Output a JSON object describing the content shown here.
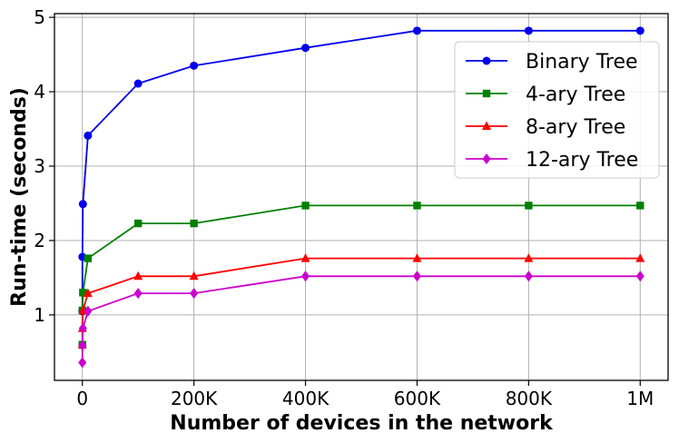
{
  "chart_data": {
    "type": "line",
    "title": "",
    "xlabel": "Number of devices in the network",
    "ylabel": "Run-time (seconds)",
    "xlim": [
      -50000,
      1050000
    ],
    "ylim": [
      0.12,
      5.05
    ],
    "x_ticks": [
      {
        "value": 0,
        "label": "0"
      },
      {
        "value": 200000,
        "label": "200K"
      },
      {
        "value": 400000,
        "label": "400K"
      },
      {
        "value": 600000,
        "label": "600K"
      },
      {
        "value": 800000,
        "label": "800K"
      },
      {
        "value": 1000000,
        "label": "1M"
      }
    ],
    "y_ticks": [
      {
        "value": 1,
        "label": "1"
      },
      {
        "value": 2,
        "label": "2"
      },
      {
        "value": 3,
        "label": "3"
      },
      {
        "value": 4,
        "label": "4"
      },
      {
        "value": 5,
        "label": "5"
      }
    ],
    "grid": true,
    "legend_position": "top-right",
    "x": [
      10,
      100,
      1000,
      10000,
      100000,
      200000,
      400000,
      600000,
      800000,
      1000000
    ],
    "series": [
      {
        "name": "Binary Tree",
        "color": "#0000ee",
        "marker": "circle",
        "values": [
          1.05,
          1.78,
          2.49,
          3.41,
          4.11,
          4.35,
          4.59,
          4.82,
          4.82,
          4.82
        ]
      },
      {
        "name": "4-ary Tree",
        "color": "#008000",
        "marker": "square",
        "values": [
          0.6,
          1.06,
          1.3,
          1.76,
          2.23,
          2.23,
          2.47,
          2.47,
          2.47,
          2.47
        ]
      },
      {
        "name": "8-ary Tree",
        "color": "#ff0000",
        "marker": "triangle",
        "values": [
          0.6,
          0.82,
          1.06,
          1.29,
          1.52,
          1.52,
          1.76,
          1.76,
          1.76,
          1.76
        ]
      },
      {
        "name": "12-ary Tree",
        "color": "#cc00cc",
        "marker": "diamond",
        "values": [
          0.36,
          0.59,
          0.82,
          1.05,
          1.29,
          1.29,
          1.52,
          1.52,
          1.52,
          1.52
        ]
      }
    ]
  }
}
